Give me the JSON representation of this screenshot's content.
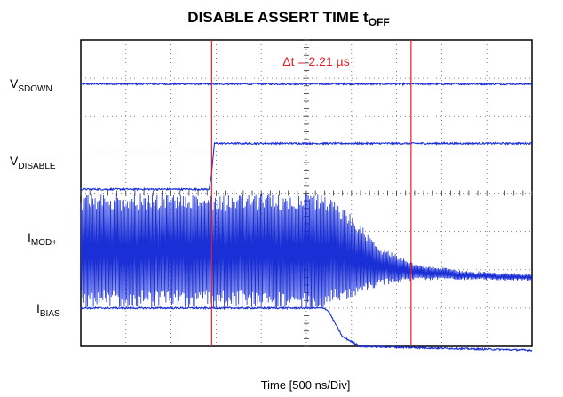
{
  "chart_data": {
    "type": "line",
    "title": "DISABLE ASSERT TIME",
    "title_symbol": "t",
    "title_subscript": "OFF",
    "xlabel": "Time [500 ns/Div]",
    "xlim": [
      0,
      5000
    ],
    "x_unit": "ns",
    "grid": true,
    "grid_divisions": {
      "x": 10,
      "y": 8
    },
    "annotation": "Δt = 2.21 µs",
    "cursors_ns": [
      1450,
      3660
    ],
    "series": [
      {
        "name": "V",
        "subscript": "SDOWN",
        "color": "#1a2fd6",
        "x": [
          0,
          5000
        ],
        "y": [
          6.85,
          6.85
        ]
      },
      {
        "name": "V",
        "subscript": "DISABLE",
        "color": "#1a2fd6",
        "x": [
          0,
          1420,
          1450,
          1480,
          5000
        ],
        "y": [
          4.1,
          4.1,
          4.5,
          5.3,
          5.3
        ]
      },
      {
        "name": "I",
        "subscript": "MOD+",
        "color": "#1a2fd6",
        "x": [
          0,
          2700,
          3000,
          3300,
          3700,
          4300,
          5000
        ],
        "y": [
          2.5,
          2.5,
          2.35,
          2.1,
          1.95,
          1.85,
          1.8
        ],
        "ripple": [
          1.5,
          1.5,
          1.1,
          0.5,
          0.2,
          0.1,
          0.08
        ]
      },
      {
        "name": "I",
        "subscript": "BIAS",
        "color": "#1a2fd6",
        "x": [
          0,
          2700,
          2750,
          2900,
          3100,
          5000
        ],
        "y": [
          1.0,
          1.0,
          0.9,
          0.25,
          0.0,
          -0.1
        ]
      }
    ]
  }
}
